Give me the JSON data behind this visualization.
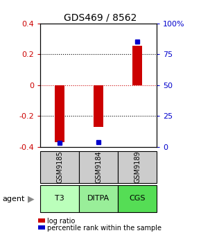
{
  "title": "GDS469 / 8562",
  "samples": [
    "GSM9185",
    "GSM9184",
    "GSM9189"
  ],
  "agents": [
    "T3",
    "DITPA",
    "CGS"
  ],
  "log_ratios": [
    -0.37,
    -0.27,
    0.255
  ],
  "percentile_ranks": [
    3,
    4,
    85
  ],
  "ylim_left": [
    -0.4,
    0.4
  ],
  "ylim_right": [
    0,
    100
  ],
  "yticks_left": [
    -0.4,
    -0.2,
    0.0,
    0.2,
    0.4
  ],
  "yticks_right": [
    0,
    25,
    50,
    75,
    100
  ],
  "ytick_labels_left": [
    "-0.4",
    "-0.2",
    "0",
    "0.2",
    "0.4"
  ],
  "ytick_labels_right": [
    "0",
    "25",
    "50",
    "75",
    "100%"
  ],
  "hlines": [
    -0.2,
    0.0,
    0.2
  ],
  "bar_color_log": "#cc0000",
  "bar_color_pct": "#0000cc",
  "sample_box_color": "#cccccc",
  "agent_colors": [
    "#bbffbb",
    "#99ee99",
    "#55dd55"
  ],
  "agent_label": "agent",
  "legend_log": "log ratio",
  "legend_pct": "percentile rank within the sample",
  "title_fontsize": 10,
  "axis_fontsize": 8,
  "tick_fontsize": 8,
  "label_fontsize": 8,
  "bar_width": 0.25
}
